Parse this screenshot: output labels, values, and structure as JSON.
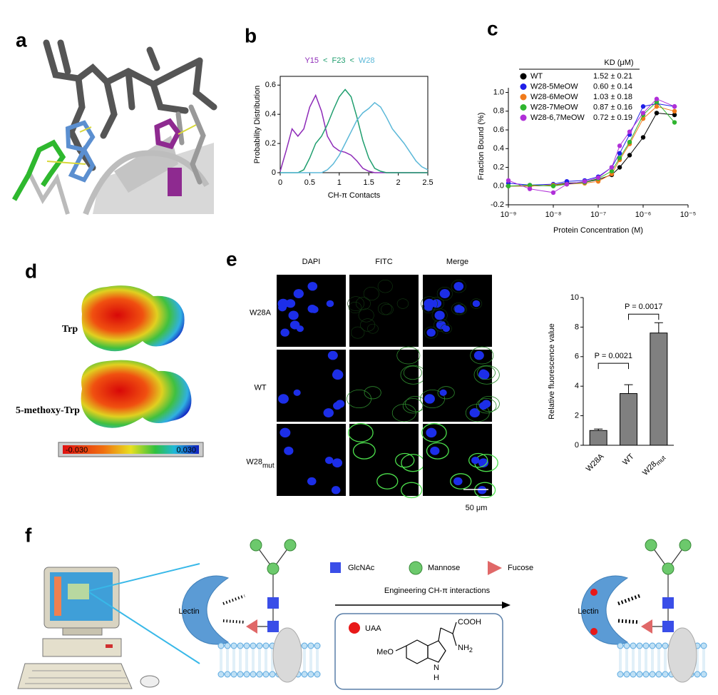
{
  "panel_labels": [
    "a",
    "b",
    "c",
    "d",
    "e",
    "f"
  ],
  "chart_data": [
    {
      "type": "line",
      "title_separator": "<",
      "x_label": "CH-π Contacts",
      "y_label": "Probability Distribution",
      "x": [
        0,
        0.1,
        0.2,
        0.3,
        0.4,
        0.5,
        0.6,
        0.7,
        0.8,
        0.9,
        1.0,
        1.1,
        1.2,
        1.3,
        1.4,
        1.5,
        1.6,
        1.7,
        1.8,
        1.9,
        2.0,
        2.1,
        2.2,
        2.3,
        2.4,
        2.5
      ],
      "series": [
        {
          "name": "Y15",
          "color": "#8e2bb8",
          "values": [
            0.01,
            0.15,
            0.3,
            0.25,
            0.3,
            0.45,
            0.53,
            0.42,
            0.25,
            0.18,
            0.15,
            0.14,
            0.12,
            0.08,
            0.03,
            0.01,
            0,
            0,
            0,
            0,
            0,
            0,
            0,
            0,
            0,
            0
          ]
        },
        {
          "name": "F23",
          "color": "#1f9e6e",
          "values": [
            0,
            0,
            0,
            0,
            0.02,
            0.1,
            0.2,
            0.25,
            0.33,
            0.43,
            0.52,
            0.57,
            0.52,
            0.38,
            0.22,
            0.1,
            0.03,
            0.01,
            0,
            0,
            0,
            0,
            0,
            0,
            0,
            0
          ]
        },
        {
          "name": "W28",
          "color": "#5bb8d8",
          "values": [
            0,
            0,
            0,
            0,
            0,
            0,
            0,
            0,
            0.02,
            0.06,
            0.12,
            0.2,
            0.28,
            0.36,
            0.41,
            0.44,
            0.48,
            0.45,
            0.38,
            0.3,
            0.25,
            0.2,
            0.14,
            0.08,
            0.04,
            0.02
          ]
        }
      ],
      "xlim": [
        0,
        2.5
      ],
      "xticks": [
        0,
        0.5,
        1,
        1.5,
        2,
        2.5
      ],
      "ylim": [
        0,
        0.66
      ],
      "yticks": [
        0,
        0.2,
        0.4,
        0.6
      ]
    },
    {
      "type": "scatter",
      "x_label": "Protein Concentration (M)",
      "y_label": "Fraction Bound (%)",
      "legend_title": "KD (μM)",
      "log_x": true,
      "x": [
        1e-09,
        3e-09,
        1e-08,
        2e-08,
        5e-08,
        1e-07,
        2e-07,
        3e-07,
        5e-07,
        1e-06,
        2e-06,
        5e-06
      ],
      "series": [
        {
          "name": "WT",
          "kd": "1.52 ± 0.21",
          "color": "#000000",
          "values": [
            0.0,
            0.0,
            0.01,
            0.03,
            0.04,
            0.07,
            0.12,
            0.2,
            0.33,
            0.52,
            0.78,
            0.76
          ]
        },
        {
          "name": "W28-5MeOW",
          "kd": "0.60 ± 0.14",
          "color": "#1f1fe8",
          "values": [
            0.03,
            0.01,
            0.02,
            0.05,
            0.06,
            0.1,
            0.2,
            0.35,
            0.55,
            0.85,
            0.88,
            0.85
          ]
        },
        {
          "name": "W28-6MeOW",
          "kd": "1.03 ± 0.18",
          "color": "#f07a1a",
          "values": [
            0.0,
            0.0,
            0.01,
            0.02,
            0.03,
            0.05,
            0.13,
            0.28,
            0.45,
            0.72,
            0.85,
            0.8
          ]
        },
        {
          "name": "W28-7MeOW",
          "kd": "0.87 ± 0.16",
          "color": "#2fb52f",
          "values": [
            0.0,
            0.01,
            0.0,
            0.02,
            0.04,
            0.08,
            0.16,
            0.3,
            0.47,
            0.76,
            0.9,
            0.68
          ]
        },
        {
          "name": "W28-6,7MeOW",
          "kd": "0.72 ± 0.19",
          "color": "#b02fd8",
          "values": [
            0.06,
            -0.03,
            -0.07,
            0.02,
            0.05,
            0.09,
            0.2,
            0.43,
            0.58,
            0.78,
            0.93,
            0.85
          ]
        }
      ],
      "xlim": [
        1e-09,
        1e-05
      ],
      "xticks": [
        {
          "value": 1e-09,
          "label": "10⁻⁹"
        },
        {
          "value": 1e-08,
          "label": "10⁻⁸"
        },
        {
          "value": 1e-07,
          "label": "10⁻⁷"
        },
        {
          "value": 1e-06,
          "label": "10⁻⁶"
        },
        {
          "value": 1e-05,
          "label": "10⁻⁵"
        }
      ],
      "ylim": [
        -0.2,
        1.05
      ],
      "yticks": [
        -0.2,
        {
          "value": 0,
          "label": "0.0"
        },
        0.2,
        0.4,
        0.6,
        0.8,
        {
          "value": 1,
          "label": "1.0"
        }
      ]
    },
    {
      "type": "bar",
      "y_label": "Relative fluorescence value",
      "categories": [
        "W28A",
        "WT",
        "W28"
      ],
      "category_sub": {
        "2": "mut"
      },
      "values": [
        1.0,
        3.5,
        7.6
      ],
      "errors": [
        0.1,
        0.6,
        0.7
      ],
      "color": "#808080",
      "annotations": [
        "P = 0.0021",
        "P = 0.0017"
      ],
      "ylim": [
        0,
        10
      ],
      "yticks": [
        0,
        2,
        4,
        6,
        8,
        10
      ]
    }
  ],
  "panel_d": {
    "labels": [
      "Trp",
      "5-methoxy-Trp"
    ],
    "colorbar": [
      "-0.030",
      "0.030"
    ]
  },
  "panel_e": {
    "columns": [
      "DAPI",
      "FITC",
      "Merge"
    ],
    "rows": [
      {
        "text": "W28A"
      },
      {
        "text": "WT"
      },
      {
        "text": "W28",
        "sub": "mut"
      }
    ],
    "scale": "50 μm"
  },
  "panel_f": {
    "legend": [
      "GlcNAc",
      "Mannose",
      "Fucose"
    ],
    "arrow_label": "Engineering CH-π interactions",
    "lectin": [
      "Lectin",
      "Lectin"
    ],
    "uaa": "UAA",
    "structure": {
      "cooh": "COOH",
      "nh": "NH",
      "nh_sub": "2",
      "meo": "MeO",
      "n": "N",
      "h": "H"
    }
  }
}
